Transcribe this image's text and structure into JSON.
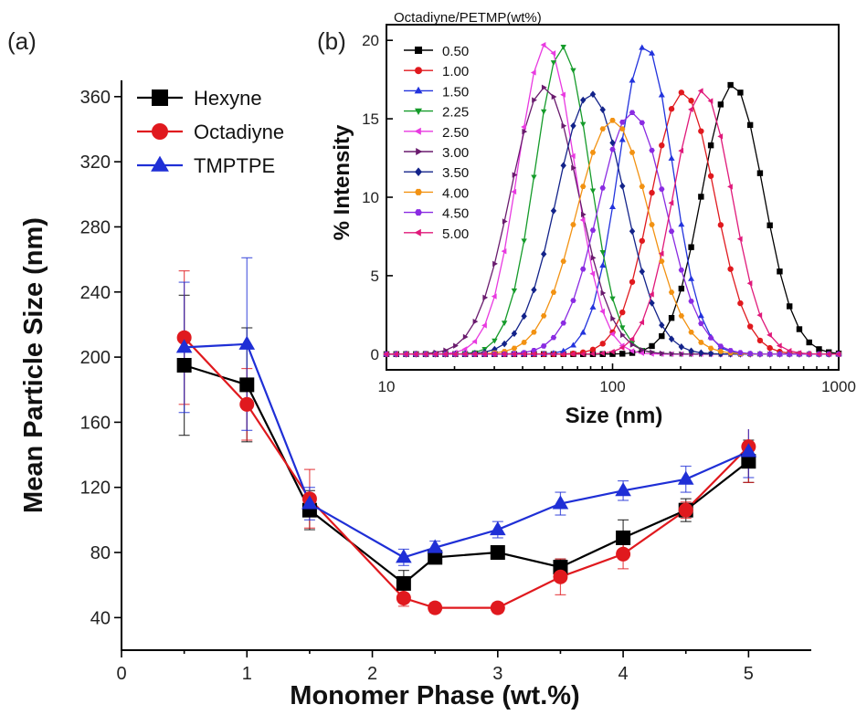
{
  "chart_data": [
    {
      "panel_label": "(a)",
      "type": "line",
      "xlabel": "Monomer Phase (wt.%)",
      "ylabel": "Mean Particle Size (nm)",
      "xlim": [
        0,
        5.5
      ],
      "ylim": [
        20,
        370
      ],
      "xticks": [
        0,
        1,
        2,
        3,
        4,
        5
      ],
      "yticks": [
        40,
        80,
        120,
        160,
        200,
        240,
        280,
        320,
        360
      ],
      "legend_position": "top-left",
      "series": [
        {
          "name": "Hexyne",
          "color": "#000000",
          "marker": "square",
          "x": [
            0.5,
            1.0,
            1.5,
            2.25,
            2.5,
            3.0,
            3.5,
            4.0,
            4.5,
            5.0
          ],
          "y": [
            195,
            183,
            106,
            61,
            77,
            80,
            71,
            89,
            106,
            136
          ],
          "err": [
            43,
            35,
            12,
            8,
            4,
            4,
            5,
            11,
            7,
            13
          ]
        },
        {
          "name": "Octadiyne",
          "color": "#e0191e",
          "marker": "circle",
          "x": [
            0.5,
            1.0,
            1.5,
            2.25,
            2.5,
            3.0,
            3.5,
            4.0,
            4.5,
            5.0
          ],
          "y": [
            212,
            171,
            113,
            52,
            46,
            46,
            65,
            79,
            106,
            145
          ],
          "err": [
            41,
            22,
            18,
            5,
            3,
            3,
            11,
            9,
            5,
            22
          ]
        },
        {
          "name": "TMPTPE",
          "color": "#1f2fd6",
          "marker": "triangle",
          "x": [
            0.5,
            1.0,
            1.5,
            2.25,
            2.5,
            3.0,
            3.5,
            4.0,
            4.5,
            5.0
          ],
          "y": [
            206,
            208,
            110,
            77,
            83,
            94,
            110,
            118,
            125,
            142
          ],
          "err": [
            40,
            53,
            10,
            5,
            4,
            5,
            7,
            6,
            8,
            16
          ]
        }
      ]
    },
    {
      "panel_label": "(b)",
      "type": "line",
      "x_scale": "log",
      "xlabel": "Size (nm)",
      "ylabel": "% Intensity",
      "xlim": [
        10,
        1000
      ],
      "ylim": [
        -1,
        21
      ],
      "xticks": [
        10,
        100,
        1000
      ],
      "yticks": [
        0,
        5,
        10,
        15,
        20
      ],
      "legend_title": "Octadiyne/PETMP(wt%)",
      "legend_position": "top-left",
      "series": [
        {
          "name": "0.50",
          "color": "#000000",
          "center": 340,
          "peak": 17.2,
          "sigma": 0.135
        },
        {
          "name": "1.00",
          "color": "#e0191e",
          "center": 205,
          "peak": 16.7,
          "sigma": 0.14
        },
        {
          "name": "1.50",
          "color": "#2233dd",
          "center": 140,
          "peak": 19.7,
          "sigma": 0.12
        },
        {
          "name": "2.25",
          "color": "#159b2a",
          "center": 60,
          "peak": 19.6,
          "sigma": 0.12
        },
        {
          "name": "2.50",
          "color": "#e83ae0",
          "center": 51,
          "peak": 19.8,
          "sigma": 0.125
        },
        {
          "name": "3.00",
          "color": "#6a1b6e",
          "center": 50,
          "peak": 17.0,
          "sigma": 0.15
        },
        {
          "name": "3.50",
          "color": "#13238a",
          "center": 80,
          "peak": 16.6,
          "sigma": 0.15
        },
        {
          "name": "4.00",
          "color": "#f29212",
          "center": 100,
          "peak": 14.9,
          "sigma": 0.16
        },
        {
          "name": "4.50",
          "color": "#8a2be2",
          "center": 122,
          "peak": 15.4,
          "sigma": 0.15
        },
        {
          "name": "5.00",
          "color": "#e0197a",
          "center": 250,
          "peak": 16.8,
          "sigma": 0.13
        }
      ]
    }
  ]
}
